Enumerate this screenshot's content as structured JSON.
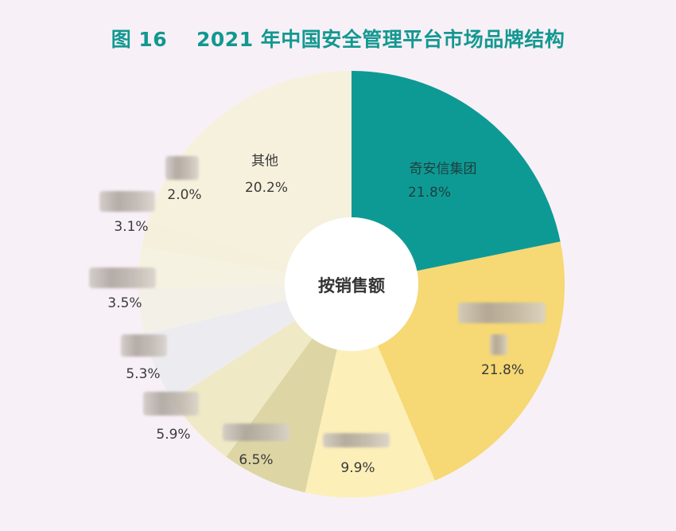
{
  "title": "图 16    2021 年中国安全管理平台市场品牌结构",
  "chart_data": {
    "type": "pie",
    "donut": true,
    "title": "图 16    2021 年中国安全管理平台市场品牌结构",
    "center_label": "按销售额",
    "start": "top, clockwise",
    "slices": [
      {
        "name": "奇安信集团",
        "value": 21.8,
        "label": "21.8%",
        "color": "#0e9a94"
      },
      {
        "name": "",
        "value": 21.8,
        "label": "21.8%",
        "color": "#f6d874",
        "name_redacted": true
      },
      {
        "name": "",
        "value": 9.9,
        "label": "9.9%",
        "color": "#fcefb8",
        "name_redacted": true
      },
      {
        "name": "",
        "value": 6.5,
        "label": "6.5%",
        "color": "#ddd6a4",
        "name_redacted": true
      },
      {
        "name": "",
        "value": 5.9,
        "label": "5.9%",
        "color": "#efe9c6",
        "name_redacted": true
      },
      {
        "name": "",
        "value": 5.3,
        "label": "5.3%",
        "color": "#ececf0",
        "name_redacted": true
      },
      {
        "name": "",
        "value": 3.5,
        "label": "3.5%",
        "color": "#f3f0e8",
        "name_redacted": true
      },
      {
        "name": "",
        "value": 3.1,
        "label": "3.1%",
        "color": "#f6f2e2",
        "name_redacted": true
      },
      {
        "name": "",
        "value": 2.0,
        "label": "2.0%",
        "color": "#f5f0dc",
        "name_redacted": true
      },
      {
        "name": "其他",
        "value": 20.2,
        "label": "20.2%",
        "color": "#f6f1dc"
      }
    ]
  }
}
